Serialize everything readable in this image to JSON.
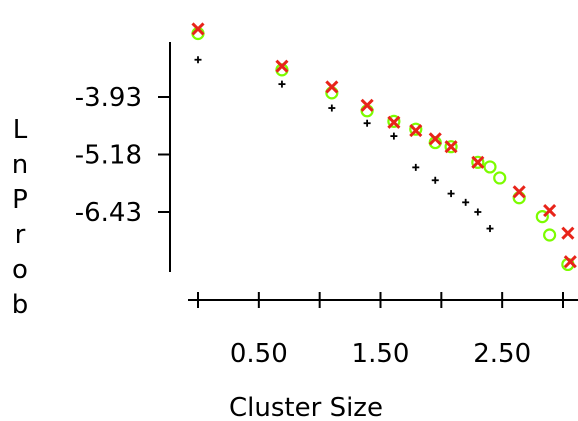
{
  "chart_data": {
    "type": "scatter",
    "title": "",
    "xlabel": "Cluster Size",
    "ylabel": "LnProb",
    "xlim": [
      0,
      3
    ],
    "ylim": [
      -7.6,
      -2.8
    ],
    "xticks": [
      0,
      0.5,
      1,
      1.5,
      2,
      2.5,
      3
    ],
    "xtick_labels": [
      "0.50",
      "1.50",
      "2.50"
    ],
    "xtick_label_values": [
      0.5,
      1.5,
      2.5
    ],
    "yticks": [
      -3.93,
      -5.18,
      -6.43
    ],
    "ytick_labels": [
      "-3.93",
      "-5.18",
      "-6.43"
    ],
    "grid": false,
    "legend": null,
    "series": [
      {
        "marker": "plus",
        "color": "#000000",
        "x": [
          0.0,
          0.69,
          1.1,
          1.39,
          1.61,
          1.79,
          1.95,
          2.08,
          2.2,
          2.3,
          2.4
        ],
        "y": [
          -3.12,
          -3.65,
          -4.17,
          -4.5,
          -4.78,
          -5.46,
          -5.74,
          -6.03,
          -6.22,
          -6.43,
          -6.79
        ]
      },
      {
        "marker": "circle",
        "color": "#7cfc00",
        "x": [
          0.0,
          0.69,
          1.1,
          1.39,
          1.61,
          1.79,
          1.95,
          2.08,
          2.3,
          2.4,
          2.48,
          2.64,
          2.83,
          2.89,
          3.04
        ],
        "y": [
          -2.55,
          -3.34,
          -3.84,
          -4.23,
          -4.46,
          -4.63,
          -4.92,
          -5.01,
          -5.35,
          -5.45,
          -5.69,
          -6.12,
          -6.53,
          -6.93,
          -7.57
        ]
      },
      {
        "marker": "x",
        "color": "#e8241a",
        "x": [
          0.0,
          0.69,
          1.1,
          1.39,
          1.61,
          1.79,
          1.95,
          2.08,
          2.3,
          2.64,
          2.89,
          3.04,
          3.06
        ],
        "y": [
          -2.45,
          -3.26,
          -3.71,
          -4.11,
          -4.48,
          -4.66,
          -4.84,
          -5.01,
          -5.35,
          -5.99,
          -6.4,
          -6.89,
          -7.51
        ]
      }
    ]
  }
}
